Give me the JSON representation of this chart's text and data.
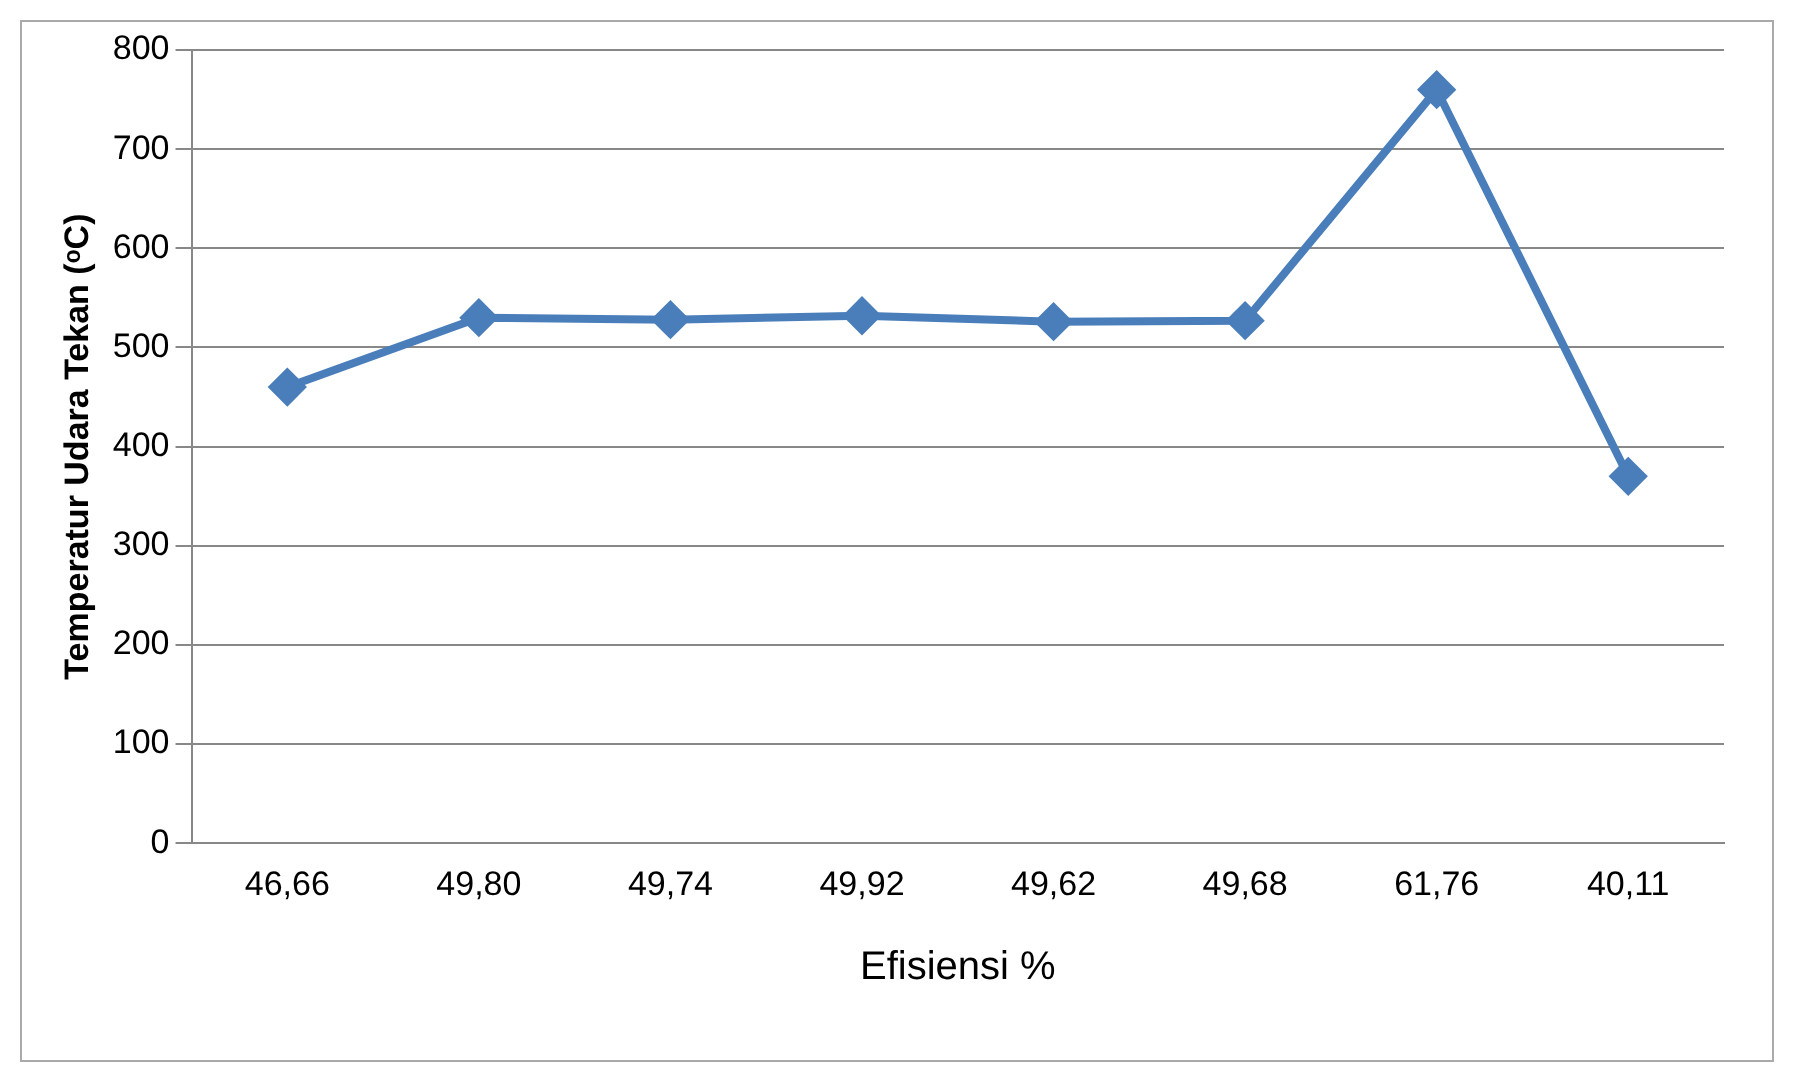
{
  "chart_data": {
    "type": "line",
    "xlabel": "Efisiensi %",
    "ylabel": "Temperatur Udara Tekan (ᵒC)",
    "categories": [
      "46,66",
      "49,80",
      "49,74",
      "49,92",
      "49,62",
      "49,68",
      "61,76",
      "40,11"
    ],
    "series": [
      {
        "color": "#4a7ebb",
        "values": [
          460,
          530,
          528,
          532,
          526,
          527,
          760,
          370
        ]
      }
    ],
    "ylim": [
      0,
      800
    ],
    "yticks": [
      0,
      100,
      200,
      300,
      400,
      500,
      600,
      700,
      800
    ],
    "grid": "y",
    "legend": false,
    "marker": "diamond",
    "line_style": "solid"
  }
}
